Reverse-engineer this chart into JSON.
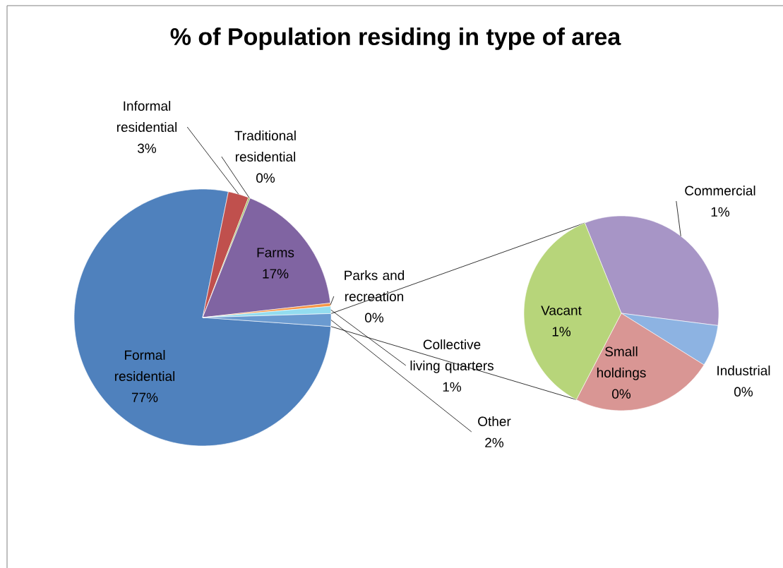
{
  "chart_data": [
    {
      "type": "pie",
      "title": "% of Population residing in type of area",
      "categories": [
        "Formal residential",
        "Informal residential",
        "Traditional residential",
        "Farms",
        "Parks and recreation",
        "Collective living quarters",
        "Other"
      ],
      "values": [
        77.1,
        2.6,
        0.2,
        17.2,
        0.4,
        0.9,
        1.6
      ],
      "colors": [
        "#4f81bd",
        "#c0504d",
        "#9bbb59",
        "#8064a2",
        "#f79646",
        "#93dcef",
        "#6a9ad0"
      ],
      "value_labels": [
        "77%",
        "3%",
        "0%",
        "17%",
        "0%",
        "1%",
        "2%"
      ]
    },
    {
      "type": "pie",
      "categories": [
        "Commercial",
        "Industrial",
        "Small holdings",
        "Vacant"
      ],
      "values": [
        0.53,
        0.11,
        0.38,
        0.58
      ],
      "colors": [
        "#a795c6",
        "#8db3e2",
        "#d99694",
        "#b7d57a"
      ],
      "value_labels": [
        "1%",
        "0%",
        "0%",
        "1%"
      ]
    }
  ]
}
